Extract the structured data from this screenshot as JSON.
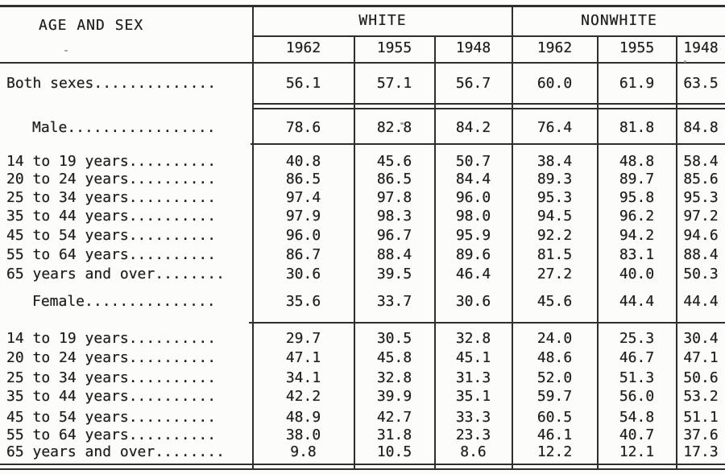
{
  "page": {
    "background": "#fcfcfa",
    "ink_color": "#1f1f1f",
    "rule_color": "#2e2e2e"
  },
  "table": {
    "title_column_header": "AGE AND SEX",
    "groups": [
      "WHITE",
      "NONWHITE"
    ],
    "years": [
      "1962",
      "1955",
      "1948",
      "1962",
      "1955",
      "1948"
    ],
    "rows": [
      {
        "label": "Both sexes..............",
        "kind": "total",
        "values": [
          "56.1",
          "57.1",
          "56.7",
          "60.0",
          "61.9",
          "63.5"
        ]
      },
      {
        "label": "Male.................",
        "kind": "sub",
        "values": [
          "78.6",
          "82.8",
          "84.2",
          "76.4",
          "81.8",
          "84.8"
        ]
      },
      {
        "label": "14 to 19 years..........",
        "kind": "age",
        "values": [
          "40.8",
          "45.6",
          "50.7",
          "38.4",
          "48.8",
          "58.4"
        ]
      },
      {
        "label": "20 to 24 years..........",
        "kind": "age",
        "values": [
          "86.5",
          "86.5",
          "84.4",
          "89.3",
          "89.7",
          "85.6"
        ]
      },
      {
        "label": "25 to 34 years..........",
        "kind": "age",
        "values": [
          "97.4",
          "97.8",
          "96.0",
          "95.3",
          "95.8",
          "95.3"
        ]
      },
      {
        "label": "35 to 44 years..........",
        "kind": "age",
        "values": [
          "97.9",
          "98.3",
          "98.0",
          "94.5",
          "96.2",
          "97.2"
        ]
      },
      {
        "label": "45 to 54 years..........",
        "kind": "age",
        "values": [
          "96.0",
          "96.7",
          "95.9",
          "92.2",
          "94.2",
          "94.6"
        ]
      },
      {
        "label": "55 to 64 years..........",
        "kind": "age",
        "values": [
          "86.7",
          "88.4",
          "89.6",
          "81.5",
          "83.1",
          "88.4"
        ]
      },
      {
        "label": "65 years and over........",
        "kind": "age",
        "values": [
          "30.6",
          "39.5",
          "46.4",
          "27.2",
          "40.0",
          "50.3"
        ]
      },
      {
        "label": "Female...............",
        "kind": "sub",
        "values": [
          "35.6",
          "33.7",
          "30.6",
          "45.6",
          "44.4",
          "44.4"
        ]
      },
      {
        "label": "14 to 19 years..........",
        "kind": "age",
        "values": [
          "29.7",
          "30.5",
          "32.8",
          "24.0",
          "25.3",
          "30.4"
        ]
      },
      {
        "label": "20 to 24 years..........",
        "kind": "age",
        "values": [
          "47.1",
          "45.8",
          "45.1",
          "48.6",
          "46.7",
          "47.1"
        ]
      },
      {
        "label": "25 to 34 years..........",
        "kind": "age",
        "values": [
          "34.1",
          "32.8",
          "31.3",
          "52.0",
          "51.3",
          "50.6"
        ]
      },
      {
        "label": "35 to 44 years..........",
        "kind": "age",
        "values": [
          "42.2",
          "39.9",
          "35.1",
          "59.7",
          "56.0",
          "53.2"
        ]
      },
      {
        "label": "45 to 54 years..........",
        "kind": "age",
        "values": [
          "48.9",
          "42.7",
          "33.3",
          "60.5",
          "54.8",
          "51.1"
        ]
      },
      {
        "label": "55 to 64 years..........",
        "kind": "age",
        "values": [
          "38.0",
          "31.8",
          "23.3",
          "46.1",
          "40.7",
          "37.6"
        ]
      },
      {
        "label": "65 years and over........",
        "kind": "age",
        "values": [
          "9.8",
          "10.5",
          "8.6",
          "12.2",
          "12.1",
          "17.3"
        ]
      }
    ]
  }
}
